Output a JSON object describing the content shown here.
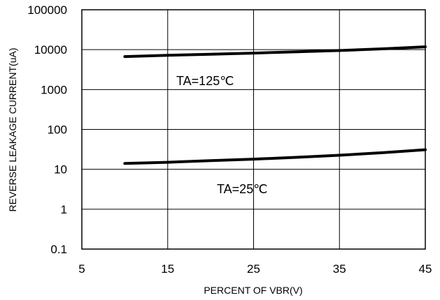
{
  "chart_data": {
    "type": "line",
    "xlabel": "PERCENT OF VBR(V)",
    "ylabel": "REVERSE LEAKAGE CURRENT(uA)",
    "xlim": [
      5,
      45
    ],
    "ylim": [
      0.1,
      100000
    ],
    "yscale": "log",
    "grid": true,
    "x_ticks": [
      5,
      15,
      25,
      35,
      45
    ],
    "x_tick_labels": [
      "5",
      "15",
      "25",
      "35",
      "45"
    ],
    "y_ticks": [
      0.1,
      1,
      10,
      100,
      1000,
      10000,
      100000
    ],
    "y_tick_labels": [
      "0.1",
      "1",
      "10",
      "100",
      "1000",
      "10000",
      "100000"
    ],
    "series": [
      {
        "label": "TA=125℃",
        "x": [
          10,
          15,
          20,
          25,
          30,
          35,
          40,
          45
        ],
        "y": [
          6700,
          7200,
          7700,
          8200,
          8800,
          9500,
          10500,
          11800
        ]
      },
      {
        "label": "TA=25℃",
        "x": [
          10,
          15,
          20,
          25,
          30,
          35,
          40,
          45
        ],
        "y": [
          14,
          15,
          16.5,
          18,
          20,
          22.5,
          26,
          31
        ]
      }
    ]
  }
}
